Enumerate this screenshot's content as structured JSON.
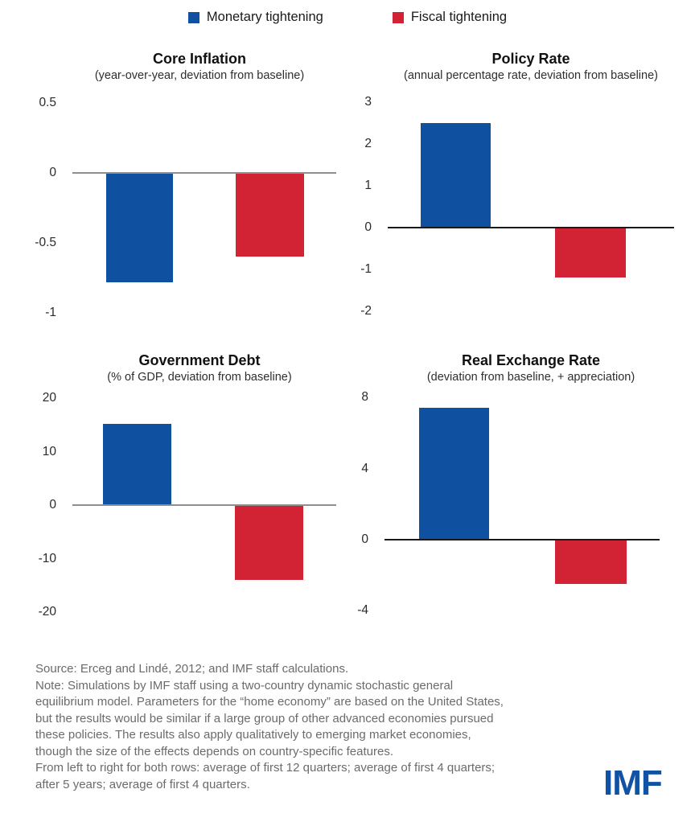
{
  "legend": {
    "items": [
      {
        "label": "Monetary tightening",
        "color": "#0f51a0"
      },
      {
        "label": "Fiscal tightening",
        "color": "#d22334"
      }
    ]
  },
  "chart_data": [
    {
      "type": "bar",
      "title": "Core Inflation",
      "subtitle": "(year-over-year, deviation from baseline)",
      "categories": [
        "Monetary tightening",
        "Fiscal tightening"
      ],
      "series": [
        {
          "name": "Monetary tightening",
          "value": -0.78,
          "color": "#0f51a0"
        },
        {
          "name": "Fiscal tightening",
          "value": -0.6,
          "color": "#d22334"
        }
      ],
      "yticks": [
        {
          "label": "0.5",
          "value": 0.5
        },
        {
          "label": "0",
          "value": 0
        },
        {
          "label": "-0.5",
          "value": -0.5
        },
        {
          "label": "-1",
          "value": -1
        }
      ],
      "ylim": [
        -1,
        0.5
      ],
      "axis_color": "#8f8f8f",
      "grid": false,
      "legend_position": "top-shared"
    },
    {
      "type": "bar",
      "title": "Policy Rate",
      "subtitle": "(annual percentage rate, deviation from baseline)",
      "categories": [
        "Monetary tightening",
        "Fiscal tightening"
      ],
      "series": [
        {
          "name": "Monetary tightening",
          "value": 2.5,
          "color": "#0f51a0"
        },
        {
          "name": "Fiscal tightening",
          "value": -1.2,
          "color": "#d22334"
        }
      ],
      "yticks": [
        {
          "label": "3",
          "value": 3
        },
        {
          "label": "2",
          "value": 2
        },
        {
          "label": "1",
          "value": 1
        },
        {
          "label": "0",
          "value": 0
        },
        {
          "label": "-1",
          "value": -1
        },
        {
          "label": "-2",
          "value": -2
        }
      ],
      "ylim": [
        -2,
        3
      ],
      "axis_color": "#1a1a1a",
      "grid": false,
      "legend_position": "top-shared"
    },
    {
      "type": "bar",
      "title": "Government Debt",
      "subtitle": "(% of GDP, deviation from baseline)",
      "categories": [
        "Monetary tightening",
        "Fiscal tightening"
      ],
      "series": [
        {
          "name": "Monetary tightening",
          "value": 15.2,
          "color": "#0f51a0"
        },
        {
          "name": "Fiscal tightening",
          "value": -14,
          "color": "#d22334"
        }
      ],
      "yticks": [
        {
          "label": "20",
          "value": 20
        },
        {
          "label": "10",
          "value": 10
        },
        {
          "label": "0",
          "value": 0
        },
        {
          "label": "-10",
          "value": -10
        },
        {
          "label": "-20",
          "value": -20
        }
      ],
      "ylim": [
        -20,
        20
      ],
      "axis_color": "#8f8f8f",
      "grid": false,
      "legend_position": "top-shared"
    },
    {
      "type": "bar",
      "title": "Real Exchange Rate",
      "subtitle": "(deviation from baseline, + appreciation)",
      "categories": [
        "Monetary tightening",
        "Fiscal tightening"
      ],
      "series": [
        {
          "name": "Monetary tightening",
          "value": 7.4,
          "color": "#0f51a0"
        },
        {
          "name": "Fiscal tightening",
          "value": -2.5,
          "color": "#d22334"
        }
      ],
      "yticks": [
        {
          "label": "8",
          "value": 8
        },
        {
          "label": "4",
          "value": 4
        },
        {
          "label": "0",
          "value": 0
        },
        {
          "label": "-4",
          "value": -4
        }
      ],
      "ylim": [
        -4,
        8
      ],
      "axis_color": "#1a1a1a",
      "grid": false,
      "legend_position": "top-shared"
    }
  ],
  "footer": {
    "lines": [
      "Source: Erceg and Lindé, 2012; and IMF staff calculations.",
      "Note: Simulations by IMF staff using a two-country dynamic stochastic general",
      "equilibrium model. Parameters for the “home economy” are based on the United States,",
      "but the results would be similar if a large group of other advanced economies pursued",
      "these policies. The results also apply qualitatively to emerging market economies,",
      "though the size of the effects depends on country-specific features.",
      "From left to right for both rows: average of first 12 quarters; average of first 4 quarters;",
      "after 5 years; average of first 4 quarters."
    ]
  },
  "logo": {
    "text": "IMF",
    "color": "#1053a4"
  }
}
